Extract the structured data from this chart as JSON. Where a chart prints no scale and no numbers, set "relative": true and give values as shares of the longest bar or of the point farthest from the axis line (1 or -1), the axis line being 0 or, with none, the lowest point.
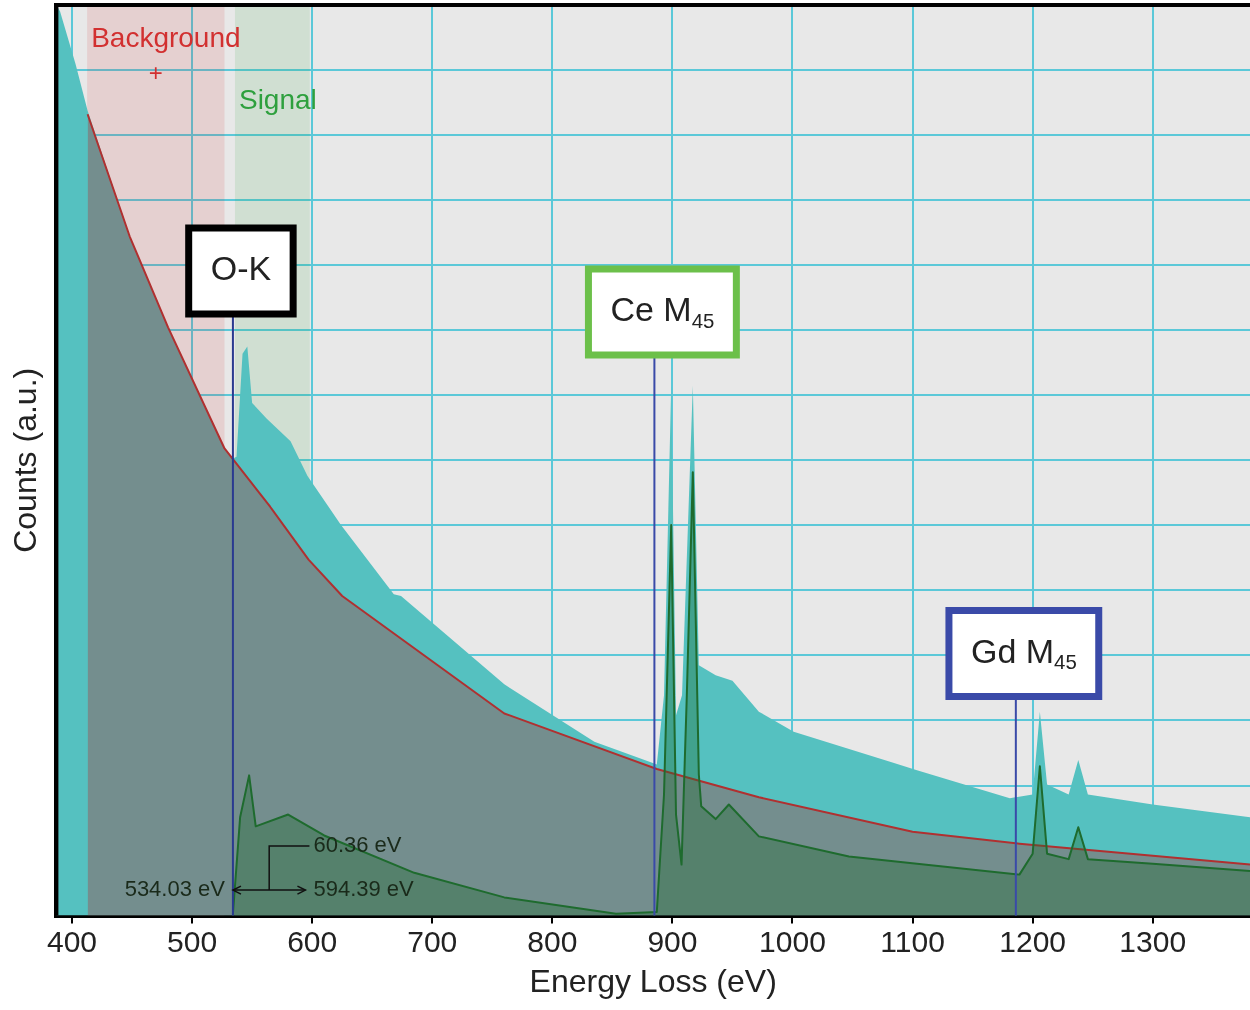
{
  "chart_data": {
    "type": "area",
    "xlabel": "Energy Loss (eV)",
    "ylabel": "Counts (a.u.)",
    "relative": true,
    "xlim": [
      387,
      1381
    ],
    "xticks": [
      400,
      500,
      600,
      700,
      800,
      900,
      1000,
      1100,
      1200,
      1300
    ],
    "grid": true,
    "legend": false,
    "series": [
      {
        "color": "#55c1c0",
        "x": [
          387,
          390,
          403,
          413,
          448,
          480,
          527,
          534,
          537,
          542,
          546,
          550,
          562,
          582,
          596,
          624,
          668,
          674,
          760,
          835,
          887,
          893,
          899,
          903,
          908,
          917,
          922,
          936,
          950,
          972,
          1001,
          1103,
          1181,
          1200,
          1206,
          1212,
          1230,
          1238,
          1246,
          1300,
          1381
        ],
        "values": [
          1.0,
          0.993,
          0.935,
          0.884,
          0.746,
          0.646,
          0.513,
          0.502,
          0.504,
          0.617,
          0.625,
          0.563,
          0.546,
          0.521,
          0.483,
          0.429,
          0.353,
          0.351,
          0.254,
          0.191,
          0.166,
          0.242,
          0.582,
          0.22,
          0.242,
          0.582,
          0.275,
          0.264,
          0.258,
          0.224,
          0.202,
          0.16,
          0.129,
          0.133,
          0.224,
          0.144,
          0.133,
          0.171,
          0.133,
          0.122,
          0.108
        ]
      },
      {
        "color": "#b03030",
        "x": [
          413,
          448,
          480,
          527,
          565,
          597,
          625,
          760,
          887,
          972,
          1100,
          1189,
          1381
        ],
        "values": [
          0.88,
          0.746,
          0.646,
          0.513,
          0.449,
          0.391,
          0.351,
          0.222,
          0.161,
          0.13,
          0.092,
          0.079,
          0.056
        ]
      },
      {
        "color": "#1e6b2e",
        "x": [
          534,
          540,
          547.5,
          553,
          580,
          610,
          685,
          760,
          853,
          887,
          893,
          899,
          903,
          907.6,
          912,
          917,
          922,
          924,
          936,
          947,
          972,
          1047,
          1189,
          1200,
          1206,
          1212,
          1230,
          1238,
          1246,
          1300,
          1381
        ],
        "values": [
          0.002,
          0.108,
          0.154,
          0.098,
          0.111,
          0.088,
          0.047,
          0.02,
          0.002,
          0.004,
          0.133,
          0.429,
          0.111,
          0.056,
          0.242,
          0.487,
          0.155,
          0.12,
          0.106,
          0.122,
          0.087,
          0.065,
          0.045,
          0.068,
          0.164,
          0.068,
          0.062,
          0.097,
          0.062,
          0.057,
          0.049
        ]
      }
    ],
    "bands": [
      {
        "axis": "x",
        "from": 412.6,
        "to": 527,
        "label": "Background",
        "color": "#d23030"
      },
      {
        "axis": "x",
        "from": 535.7,
        "to": 598,
        "label": "Signal",
        "color": "#2ea03e"
      }
    ],
    "ref_lines": [
      {
        "axis": "x",
        "value": 534,
        "label": "O-K",
        "color": "#2a3a90"
      },
      {
        "axis": "x",
        "value": 885,
        "label": "Ce M$_{45}$",
        "color": "#3a4aa8"
      },
      {
        "axis": "x",
        "value": 1186,
        "label": "Gd M$_{45}$",
        "color": "#3a4aa8"
      }
    ],
    "annotations": [
      "+",
      {
        "text": "534.03 eV",
        "x": 534.03,
        "y": 0.028
      },
      {
        "text": "594.39 eV",
        "x": 594.39,
        "y": 0.028
      },
      "60.36 eV"
    ]
  }
}
